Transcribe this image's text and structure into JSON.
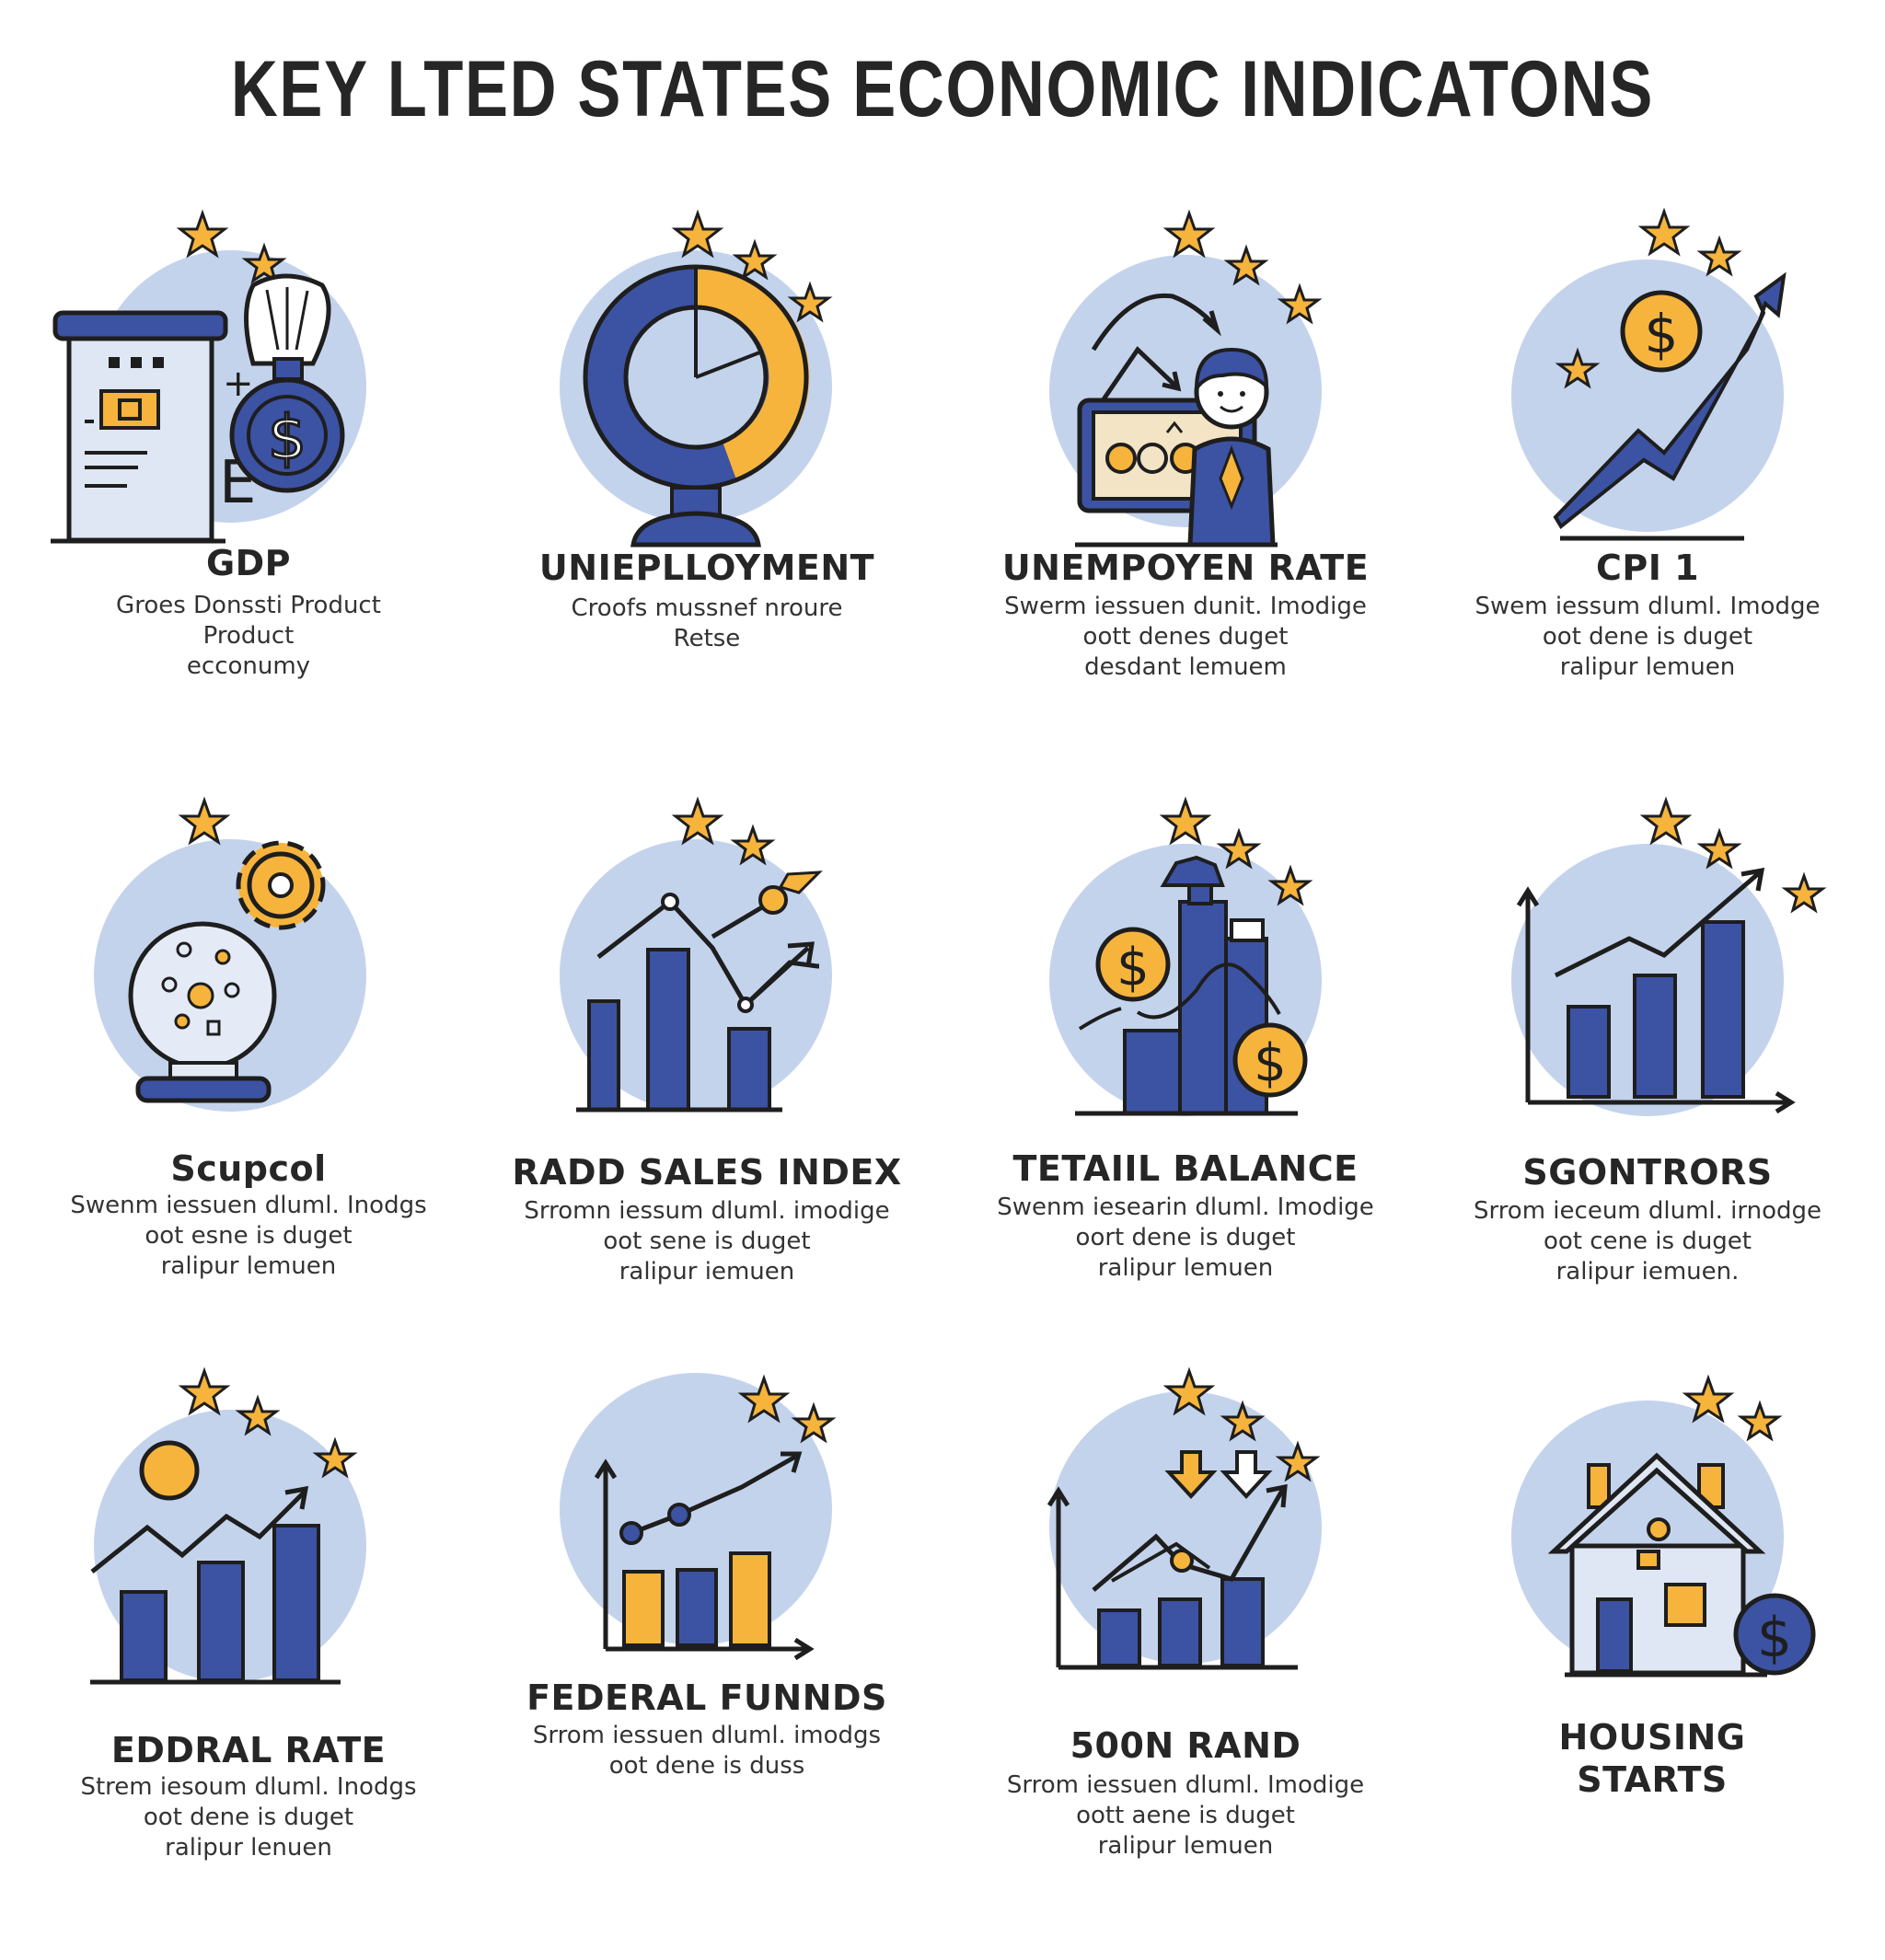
{
  "title": "KEY LTED STATES ECONOMIC INDICATONS",
  "colors": {
    "navy": "#3c52a3",
    "gold": "#f6b43c",
    "circle": "#c4d3ec",
    "outline": "#1e1e1e"
  },
  "cards": [
    {
      "label": "GDP",
      "desc": [
        "Groes Donssti Product",
        "Product",
        "ecconumy"
      ],
      "icon": "gdp-building-dollar-icon"
    },
    {
      "label": "UNIEPLLOYMENT",
      "desc": [
        "Croofs mussnef nroure",
        "Retse"
      ],
      "icon": "donut-gauge-icon"
    },
    {
      "label": "UNEMPOYEN RATE",
      "desc": [
        "Swerm iessuen dunit. Imodige",
        "oott denes duget",
        "desdant lemuem"
      ],
      "icon": "businessman-money-icon"
    },
    {
      "label": "CPI 1",
      "desc": [
        "Swem iessum dluml. Imodge",
        "oot dene is duget",
        "ralipur lemuen"
      ],
      "icon": "rising-arrow-dollar-icon"
    },
    {
      "label": "Scupcol",
      "desc": [
        "Swenm iessuen dluml. Inodgs",
        "oot esne is duget",
        "ralipur lemuen"
      ],
      "icon": "globe-gear-icon"
    },
    {
      "label": "RADD SALES INDEX",
      "desc": [
        "Srromn iessum dluml. imodige",
        "oot sene is duget",
        "ralipur iemuen"
      ],
      "icon": "bar-line-chart-icon"
    },
    {
      "label": "TETAIIL BALANCE",
      "desc": [
        "Swenm iesearin dluml. Imodige",
        "oort dene is duget",
        "ralipur lemuen"
      ],
      "icon": "tower-coins-icon"
    },
    {
      "label": "SGONTRORS",
      "desc": [
        "Srrom ieceum dluml. irnodge",
        "oot cene is duget",
        "ralipur iemuen."
      ],
      "icon": "axis-bar-chart-icon"
    },
    {
      "label": "EDDRAL RATE",
      "desc": [
        "Strem iesoum dluml. Inodgs",
        "oot dene is duget",
        "ralipur lenuen"
      ],
      "icon": "sun-bar-chart-icon"
    },
    {
      "label": "FEDERAL FUNNDS",
      "desc": [
        "Srrom iessuen dluml. imodgs",
        "oot dene is duss"
      ],
      "icon": "gold-bar-chart-icon"
    },
    {
      "label": "500N RAND",
      "desc": [
        "Srrom iessuen dluml. Imodige",
        "oott aene is duget",
        "ralipur lemuen"
      ],
      "icon": "down-arrows-chart-icon"
    },
    {
      "label": "HOUSING STARTS",
      "desc": [],
      "icon": "house-dollar-icon"
    }
  ]
}
